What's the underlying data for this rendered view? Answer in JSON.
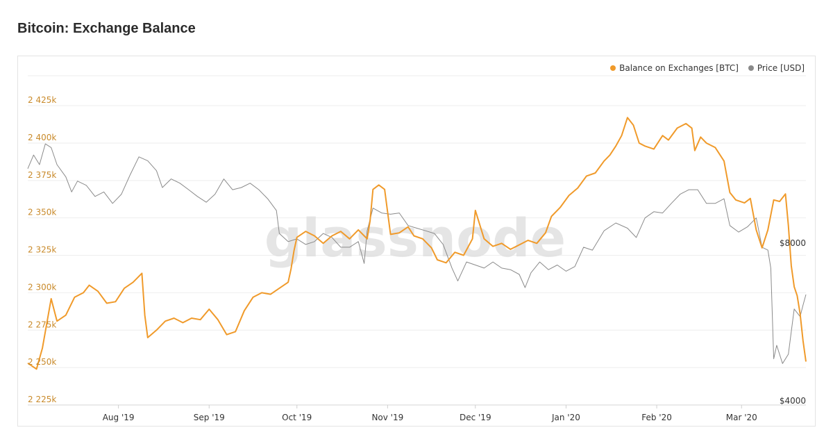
{
  "page": {
    "title": "Bitcoin: Exchange Balance",
    "watermark": "glassnode"
  },
  "colors": {
    "balance": "#f09a2a",
    "price": "#8a8a8a",
    "left_axis_text": "#c98a2a",
    "right_axis_text": "#333333",
    "x_axis_text": "#333333",
    "grid": "#eeeeee"
  },
  "legend": {
    "placement": "top-right",
    "items": [
      {
        "label": "Balance on Exchanges [BTC]",
        "color": "#f09a2a"
      },
      {
        "label": "Price [USD]",
        "color": "#8a8a8a"
      }
    ]
  },
  "chart_data": {
    "type": "line",
    "title": "Bitcoin: Exchange Balance",
    "grid": true,
    "x_range": [
      "2019-07-01",
      "2020-03-23"
    ],
    "x_ticks": [
      {
        "label": "Aug '19",
        "date": "2019-08-01"
      },
      {
        "label": "Sep '19",
        "date": "2019-09-01"
      },
      {
        "label": "Oct '19",
        "date": "2019-10-01"
      },
      {
        "label": "Nov '19",
        "date": "2019-11-01"
      },
      {
        "label": "Dec '19",
        "date": "2019-12-01"
      },
      {
        "label": "Jan '20",
        "date": "2020-01-01"
      },
      {
        "label": "Feb '20",
        "date": "2020-02-01"
      },
      {
        "label": "Mar '20",
        "date": "2020-03-01"
      }
    ],
    "y_left": {
      "range": [
        2225000,
        2445000
      ],
      "ticks": [
        {
          "label": "2 225k",
          "value": 2225000
        },
        {
          "label": "2 250k",
          "value": 2250000
        },
        {
          "label": "2 275k",
          "value": 2275000
        },
        {
          "label": "2 300k",
          "value": 2300000
        },
        {
          "label": "2 325k",
          "value": 2325000
        },
        {
          "label": "2 350k",
          "value": 2350000
        },
        {
          "label": "2 375k",
          "value": 2375000
        },
        {
          "label": "2 400k",
          "value": 2400000
        },
        {
          "label": "2 425k",
          "value": 2425000
        }
      ]
    },
    "y_right": {
      "scale": "log",
      "range": [
        4000,
        17000
      ],
      "ticks": [
        {
          "label": "$4000",
          "value": 4000
        },
        {
          "label": "$8000",
          "value": 8000
        }
      ]
    },
    "series": [
      {
        "name": "Balance on Exchanges [BTC]",
        "axis": "left",
        "color": "#f09a2a",
        "points": [
          [
            "2019-07-01",
            2253000
          ],
          [
            "2019-07-04",
            2249000
          ],
          [
            "2019-07-06",
            2263000
          ],
          [
            "2019-07-09",
            2296000
          ],
          [
            "2019-07-11",
            2281000
          ],
          [
            "2019-07-14",
            2285000
          ],
          [
            "2019-07-17",
            2297000
          ],
          [
            "2019-07-20",
            2300000
          ],
          [
            "2019-07-22",
            2305000
          ],
          [
            "2019-07-25",
            2301000
          ],
          [
            "2019-07-28",
            2293000
          ],
          [
            "2019-07-31",
            2294000
          ],
          [
            "2019-08-03",
            2303000
          ],
          [
            "2019-08-06",
            2307000
          ],
          [
            "2019-08-09",
            2313000
          ],
          [
            "2019-08-10",
            2285000
          ],
          [
            "2019-08-11",
            2270000
          ],
          [
            "2019-08-14",
            2275000
          ],
          [
            "2019-08-17",
            2281000
          ],
          [
            "2019-08-20",
            2283000
          ],
          [
            "2019-08-23",
            2280000
          ],
          [
            "2019-08-26",
            2283000
          ],
          [
            "2019-08-29",
            2282000
          ],
          [
            "2019-09-01",
            2289000
          ],
          [
            "2019-09-04",
            2282000
          ],
          [
            "2019-09-07",
            2272000
          ],
          [
            "2019-09-10",
            2274000
          ],
          [
            "2019-09-13",
            2288000
          ],
          [
            "2019-09-16",
            2297000
          ],
          [
            "2019-09-19",
            2300000
          ],
          [
            "2019-09-22",
            2299000
          ],
          [
            "2019-09-25",
            2303000
          ],
          [
            "2019-09-28",
            2307000
          ],
          [
            "2019-09-29",
            2316000
          ],
          [
            "2019-09-30",
            2328000
          ],
          [
            "2019-10-01",
            2337000
          ],
          [
            "2019-10-04",
            2341000
          ],
          [
            "2019-10-07",
            2338000
          ],
          [
            "2019-10-10",
            2333000
          ],
          [
            "2019-10-13",
            2338000
          ],
          [
            "2019-10-16",
            2341000
          ],
          [
            "2019-10-19",
            2336000
          ],
          [
            "2019-10-22",
            2342000
          ],
          [
            "2019-10-25",
            2336000
          ],
          [
            "2019-10-26",
            2348000
          ],
          [
            "2019-10-27",
            2369000
          ],
          [
            "2019-10-29",
            2372000
          ],
          [
            "2019-10-31",
            2369000
          ],
          [
            "2019-11-02",
            2339000
          ],
          [
            "2019-11-05",
            2340000
          ],
          [
            "2019-11-08",
            2344000
          ],
          [
            "2019-11-10",
            2338000
          ],
          [
            "2019-11-13",
            2336000
          ],
          [
            "2019-11-16",
            2330000
          ],
          [
            "2019-11-18",
            2322000
          ],
          [
            "2019-11-21",
            2320000
          ],
          [
            "2019-11-24",
            2327000
          ],
          [
            "2019-11-27",
            2325000
          ],
          [
            "2019-11-30",
            2336000
          ],
          [
            "2019-12-01",
            2355000
          ],
          [
            "2019-12-04",
            2336000
          ],
          [
            "2019-12-07",
            2331000
          ],
          [
            "2019-12-10",
            2333000
          ],
          [
            "2019-12-13",
            2329000
          ],
          [
            "2019-12-16",
            2332000
          ],
          [
            "2019-12-19",
            2335000
          ],
          [
            "2019-12-22",
            2333000
          ],
          [
            "2019-12-25",
            2340000
          ],
          [
            "2019-12-27",
            2351000
          ],
          [
            "2019-12-30",
            2357000
          ],
          [
            "2020-01-02",
            2365000
          ],
          [
            "2020-01-05",
            2370000
          ],
          [
            "2020-01-08",
            2378000
          ],
          [
            "2020-01-11",
            2380000
          ],
          [
            "2020-01-14",
            2388000
          ],
          [
            "2020-01-16",
            2392000
          ],
          [
            "2020-01-18",
            2398000
          ],
          [
            "2020-01-20",
            2405000
          ],
          [
            "2020-01-22",
            2417000
          ],
          [
            "2020-01-24",
            2412000
          ],
          [
            "2020-01-26",
            2400000
          ],
          [
            "2020-01-28",
            2398000
          ],
          [
            "2020-01-31",
            2396000
          ],
          [
            "2020-02-03",
            2405000
          ],
          [
            "2020-02-05",
            2402000
          ],
          [
            "2020-02-08",
            2410000
          ],
          [
            "2020-02-11",
            2413000
          ],
          [
            "2020-02-13",
            2410000
          ],
          [
            "2020-02-14",
            2395000
          ],
          [
            "2020-02-16",
            2404000
          ],
          [
            "2020-02-18",
            2400000
          ],
          [
            "2020-02-21",
            2397000
          ],
          [
            "2020-02-24",
            2388000
          ],
          [
            "2020-02-26",
            2367000
          ],
          [
            "2020-02-28",
            2362000
          ],
          [
            "2020-03-02",
            2360000
          ],
          [
            "2020-03-04",
            2363000
          ],
          [
            "2020-03-06",
            2342000
          ],
          [
            "2020-03-08",
            2330000
          ],
          [
            "2020-03-10",
            2342000
          ],
          [
            "2020-03-12",
            2362000
          ],
          [
            "2020-03-14",
            2361000
          ],
          [
            "2020-03-16",
            2366000
          ],
          [
            "2020-03-17",
            2345000
          ],
          [
            "2020-03-18",
            2318000
          ],
          [
            "2020-03-19",
            2304000
          ],
          [
            "2020-03-20",
            2298000
          ],
          [
            "2020-03-21",
            2286000
          ],
          [
            "2020-03-22",
            2268000
          ],
          [
            "2020-03-23",
            2254000
          ]
        ]
      },
      {
        "name": "Price [USD]",
        "axis": "right",
        "color": "#8a8a8a",
        "points": [
          [
            "2019-07-01",
            11300
          ],
          [
            "2019-07-03",
            12000
          ],
          [
            "2019-07-05",
            11500
          ],
          [
            "2019-07-07",
            12600
          ],
          [
            "2019-07-09",
            12400
          ],
          [
            "2019-07-11",
            11500
          ],
          [
            "2019-07-14",
            10900
          ],
          [
            "2019-07-16",
            10200
          ],
          [
            "2019-07-18",
            10700
          ],
          [
            "2019-07-21",
            10500
          ],
          [
            "2019-07-24",
            10000
          ],
          [
            "2019-07-27",
            10200
          ],
          [
            "2019-07-30",
            9700
          ],
          [
            "2019-08-02",
            10100
          ],
          [
            "2019-08-05",
            11000
          ],
          [
            "2019-08-08",
            11900
          ],
          [
            "2019-08-11",
            11700
          ],
          [
            "2019-08-14",
            11200
          ],
          [
            "2019-08-16",
            10400
          ],
          [
            "2019-08-19",
            10800
          ],
          [
            "2019-08-22",
            10600
          ],
          [
            "2019-08-25",
            10300
          ],
          [
            "2019-08-28",
            10000
          ],
          [
            "2019-08-31",
            9750
          ],
          [
            "2019-09-03",
            10100
          ],
          [
            "2019-09-06",
            10800
          ],
          [
            "2019-09-09",
            10300
          ],
          [
            "2019-09-12",
            10400
          ],
          [
            "2019-09-15",
            10600
          ],
          [
            "2019-09-18",
            10300
          ],
          [
            "2019-09-21",
            9900
          ],
          [
            "2019-09-24",
            9400
          ],
          [
            "2019-09-25",
            8500
          ],
          [
            "2019-09-28",
            8200
          ],
          [
            "2019-10-01",
            8300
          ],
          [
            "2019-10-04",
            8100
          ],
          [
            "2019-10-07",
            8200
          ],
          [
            "2019-10-10",
            8500
          ],
          [
            "2019-10-13",
            8350
          ],
          [
            "2019-10-16",
            8000
          ],
          [
            "2019-10-19",
            8000
          ],
          [
            "2019-10-22",
            8200
          ],
          [
            "2019-10-24",
            7450
          ],
          [
            "2019-10-25",
            8600
          ],
          [
            "2019-10-27",
            9500
          ],
          [
            "2019-10-30",
            9300
          ],
          [
            "2019-11-02",
            9250
          ],
          [
            "2019-11-05",
            9300
          ],
          [
            "2019-11-08",
            8800
          ],
          [
            "2019-11-11",
            8700
          ],
          [
            "2019-11-14",
            8600
          ],
          [
            "2019-11-17",
            8500
          ],
          [
            "2019-11-20",
            8100
          ],
          [
            "2019-11-23",
            7300
          ],
          [
            "2019-11-25",
            6900
          ],
          [
            "2019-11-28",
            7500
          ],
          [
            "2019-12-01",
            7400
          ],
          [
            "2019-12-04",
            7300
          ],
          [
            "2019-12-07",
            7500
          ],
          [
            "2019-12-10",
            7300
          ],
          [
            "2019-12-13",
            7250
          ],
          [
            "2019-12-16",
            7100
          ],
          [
            "2019-12-18",
            6700
          ],
          [
            "2019-12-20",
            7150
          ],
          [
            "2019-12-23",
            7500
          ],
          [
            "2019-12-26",
            7250
          ],
          [
            "2019-12-29",
            7400
          ],
          [
            "2020-01-01",
            7200
          ],
          [
            "2020-01-04",
            7350
          ],
          [
            "2020-01-07",
            8000
          ],
          [
            "2020-01-10",
            7900
          ],
          [
            "2020-01-14",
            8600
          ],
          [
            "2020-01-18",
            8900
          ],
          [
            "2020-01-22",
            8700
          ],
          [
            "2020-01-25",
            8350
          ],
          [
            "2020-01-28",
            9100
          ],
          [
            "2020-01-31",
            9350
          ],
          [
            "2020-02-03",
            9300
          ],
          [
            "2020-02-06",
            9700
          ],
          [
            "2020-02-09",
            10100
          ],
          [
            "2020-02-12",
            10300
          ],
          [
            "2020-02-15",
            10300
          ],
          [
            "2020-02-18",
            9700
          ],
          [
            "2020-02-21",
            9700
          ],
          [
            "2020-02-24",
            9900
          ],
          [
            "2020-02-26",
            8800
          ],
          [
            "2020-02-29",
            8550
          ],
          [
            "2020-03-03",
            8750
          ],
          [
            "2020-03-06",
            9100
          ],
          [
            "2020-03-08",
            8000
          ],
          [
            "2020-03-10",
            7900
          ],
          [
            "2020-03-11",
            7300
          ],
          [
            "2020-03-12",
            4900
          ],
          [
            "2020-03-13",
            5200
          ],
          [
            "2020-03-15",
            4800
          ],
          [
            "2020-03-17",
            5000
          ],
          [
            "2020-03-19",
            6100
          ],
          [
            "2020-03-21",
            5900
          ],
          [
            "2020-03-22",
            6200
          ],
          [
            "2020-03-23",
            6500
          ]
        ]
      }
    ]
  }
}
